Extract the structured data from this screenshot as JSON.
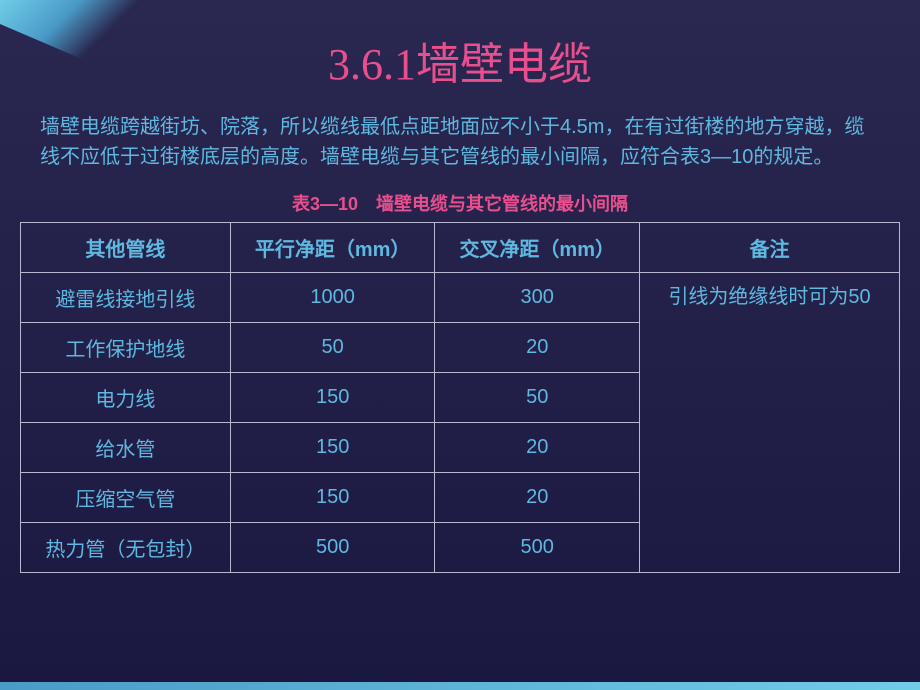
{
  "title": "3.6.1墙壁电缆",
  "body_text": "墙壁电缆跨越街坊、院落，所以缆线最低点距地面应不小于4.5m，在有过街楼的地方穿越，缆线不应低于过街楼底层的高度。墙壁电缆与其它管线的最小间隔，应符合表3—10的规定。",
  "table": {
    "caption": "表3—10　墙壁电缆与其它管线的最小间隔",
    "headers": {
      "col1": "其他管线",
      "col2": "平行净距（mm）",
      "col3": "交叉净距（mm）",
      "col4": "备注"
    },
    "rows": [
      {
        "c1": "避雷线接地引线",
        "c2": "1000",
        "c3": "300"
      },
      {
        "c1": "工作保护地线",
        "c2": "50",
        "c3": "20"
      },
      {
        "c1": "电力线",
        "c2": "150",
        "c3": "50"
      },
      {
        "c1": "给水管",
        "c2": "150",
        "c3": "20"
      },
      {
        "c1": "压缩空气管",
        "c2": "150",
        "c3": "20"
      },
      {
        "c1": "热力管（无包封）",
        "c2": "500",
        "c3": "500"
      }
    ],
    "notes": "引线为绝缘线时可为50"
  },
  "colors": {
    "title_color": "#e94f8f",
    "text_color": "#5eb8e0",
    "border_color": "#b8b8d0",
    "bg_top": "#2a2850",
    "bg_bottom": "#1a1840",
    "accent_light": "#6fcde8",
    "accent_dark": "#4a9bc7"
  }
}
